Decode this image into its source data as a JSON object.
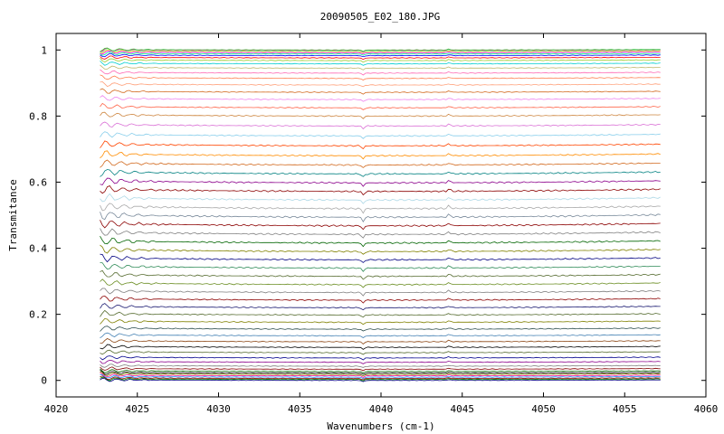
{
  "chart_data": {
    "type": "line",
    "title": "20090505_E02_180.JPG",
    "xlabel": "Wavenumbers (cm-1)",
    "ylabel": "Transmitance",
    "xlim": [
      4020,
      4060
    ],
    "ylim": [
      -0.05,
      1.05
    ],
    "x_ticks": [
      "4020",
      "4025",
      "4030",
      "4035",
      "4040",
      "4045",
      "4050",
      "4055",
      "4060"
    ],
    "y_ticks": [
      "0",
      "0.2",
      "0.4",
      "0.6",
      "0.8",
      "1"
    ],
    "grid": false,
    "legend": "none",
    "x_range": [
      4022.7,
      4057.2
    ],
    "series_levels": [
      0.0,
      0.003,
      0.006,
      0.01,
      0.014,
      0.018,
      0.022,
      0.027,
      0.034,
      0.043,
      0.055,
      0.068,
      0.084,
      0.1,
      0.117,
      0.135,
      0.155,
      0.176,
      0.198,
      0.22,
      0.243,
      0.266,
      0.29,
      0.315,
      0.34,
      0.365,
      0.39,
      0.416,
      0.442,
      0.468,
      0.494,
      0.52,
      0.546,
      0.572,
      0.598,
      0.625,
      0.652,
      0.68,
      0.71,
      0.74,
      0.77,
      0.8,
      0.825,
      0.85,
      0.872,
      0.894,
      0.914,
      0.93,
      0.945,
      0.958,
      0.968,
      0.976,
      0.983,
      0.988,
      0.992,
      0.995,
      0.997,
      0.999,
      1.0
    ],
    "series_colors": [
      "#000080",
      "#008000",
      "#8b0000",
      "#1e90ff",
      "#ff1493",
      "#808000",
      "#000000",
      "#006400",
      "#800000",
      "#808080",
      "#8b008b",
      "#00008b",
      "#556b2f",
      "#000000",
      "#8b4513",
      "#4682b4",
      "#2f4f4f",
      "#808000",
      "#556b2f",
      "#191970",
      "#8b0000",
      "#808080",
      "#6b8e23",
      "#556b2f",
      "#2e8b57",
      "#000080",
      "#808000",
      "#006400",
      "#808080",
      "#8b0000",
      "#778899",
      "#a9a9a9",
      "#add8e6",
      "#8b0000",
      "#8b008b",
      "#008080",
      "#d2691e",
      "#ff8c00",
      "#ff4500",
      "#87ceeb",
      "#da70d6",
      "#cd853f",
      "#ff6347",
      "#ee82ee",
      "#d2691e",
      "#ffa07a",
      "#ff7f50",
      "#ff69b4",
      "#bdb76b",
      "#00ced1",
      "#9acd32",
      "#ff0000",
      "#0000ff",
      "#00ff7f",
      "#ff00ff",
      "#ffd700",
      "#7fffd4",
      "#ff1493",
      "#32cd32"
    ]
  }
}
